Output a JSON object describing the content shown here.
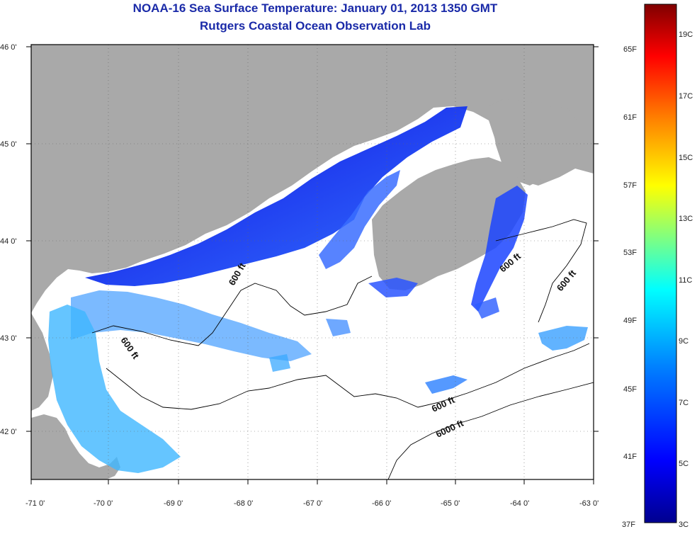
{
  "header": {
    "title": "NOAA-16 Sea Surface Temperature:  January 01, 2013 1350 GMT",
    "subtitle": "Rutgers Coastal Ocean Observation Lab"
  },
  "map": {
    "lat_labels": [
      "46 0'",
      "45 0'",
      "44 0'",
      "43 0'",
      "42 0'"
    ],
    "lon_labels": [
      "-71 0'",
      "-70 0'",
      "-69 0'",
      "-68 0'",
      "-67 0'",
      "-66 0'",
      "-65 0'",
      "-64 0'",
      "-63 0'"
    ],
    "contour_labels": [
      "600 ft",
      "600 ft",
      "600 ft",
      "600 ft",
      "600 ft",
      "6000 ft"
    ],
    "colors": {
      "land": "#a9a9a9",
      "no_data": "#ffffff",
      "contour": "#000000"
    }
  },
  "colorbar": {
    "fahrenheit_labels": [
      "65F",
      "61F",
      "57F",
      "53F",
      "49F",
      "45F",
      "41F",
      "37F"
    ],
    "celsius_labels": [
      "19C",
      "17C",
      "15C",
      "13C",
      "11C",
      "9C",
      "7C",
      "5C",
      "3C"
    ],
    "colors": [
      "#00008f",
      "#0000ff",
      "#0080ff",
      "#00ffff",
      "#80ff80",
      "#ffff00",
      "#ff8000",
      "#ff0000",
      "#800000"
    ]
  }
}
